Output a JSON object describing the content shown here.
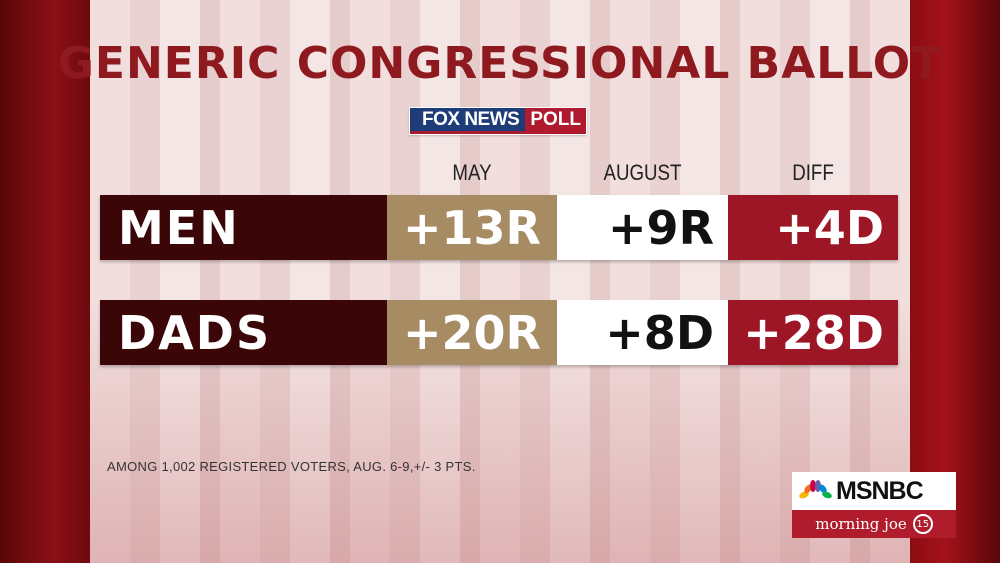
{
  "title": "GENERIC CONGRESSIONAL BALLOT",
  "source_logo": {
    "part1": "FOX NEWS",
    "part2": "POLL"
  },
  "chart_data": {
    "type": "table",
    "columns": [
      "MAY",
      "AUGUST",
      "DIFF"
    ],
    "rows": [
      {
        "label": "MEN",
        "values": [
          "+13R",
          "+9R",
          "+4D"
        ]
      },
      {
        "label": "DADS",
        "values": [
          "+20R",
          "+8D",
          "+28D"
        ]
      }
    ],
    "colors": {
      "label": "#3b0607",
      "may": "#a68b63",
      "august": "#ffffff",
      "diff": "#9c1626",
      "title": "#8e1a20"
    }
  },
  "footnote": "AMONG 1,002 REGISTERED VOTERS, AUG. 6-9,+/- 3 PTS.",
  "network": {
    "name": "MSNBC",
    "show": "morning joe",
    "badge": "15"
  }
}
